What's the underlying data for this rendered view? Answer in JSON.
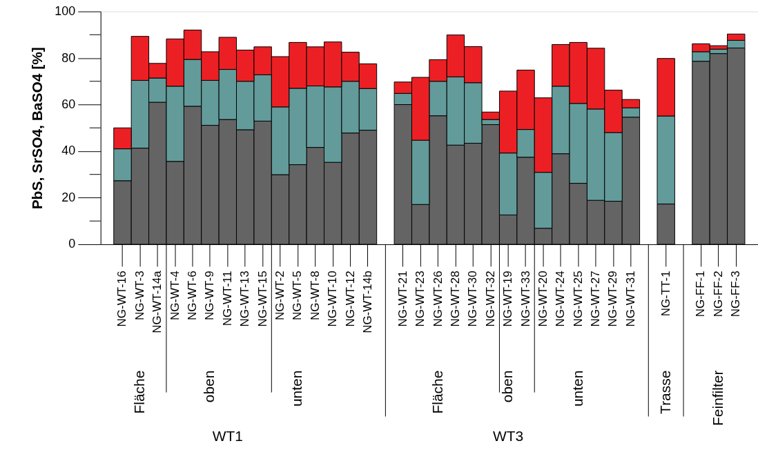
{
  "chart_data": {
    "type": "bar",
    "stacked": true,
    "ylabel": "PbS, SrSO4, BaSO4 [%]",
    "categories": [
      "NG-WT-16",
      "NG-WT-3",
      "NG-WT-14a",
      "NG-WT-4",
      "NG-WT-6",
      "NG-WT-9",
      "NG-WT-11",
      "NG-WT-13",
      "NG-WT-15",
      "NG-WT-2",
      "NG-WT-5",
      "NG-WT-8",
      "NG-WT-10",
      "NG-WT-12",
      "NG-WT-14b",
      null,
      "NG-WT-21",
      "NG-WT-23",
      "NG-WT-26",
      "NG-WT-28",
      "NG-WT-30",
      "NG-WT-32",
      "NG-WT-19",
      "NG-WT-33",
      "NG-WT-20",
      "NG-WT-24",
      "NG-WT-25",
      "NG-WT-27",
      "NG-WT-29",
      "NG-WT-31",
      null,
      "NG-TT-1",
      null,
      "NG-FF-1",
      "NG-FF-2",
      "NG-FF-3"
    ],
    "series": [
      {
        "color": "#646464",
        "values": [
          27.3,
          41.3,
          61.0,
          35.6,
          59.3,
          51.1,
          53.6,
          49.2,
          52.9,
          29.9,
          34.2,
          41.6,
          35.2,
          47.8,
          49.0,
          null,
          60.0,
          17.1,
          55.2,
          42.6,
          43.4,
          51.4,
          12.6,
          37.4,
          6.9,
          38.9,
          26.2,
          18.9,
          18.5,
          54.6,
          null,
          17.3,
          null,
          78.6,
          81.9,
          84.3
        ]
      },
      {
        "color": "#629b9a",
        "values": [
          13.7,
          29.1,
          10.4,
          32.3,
          20.1,
          19.3,
          21.5,
          20.8,
          19.9,
          29.1,
          32.8,
          26.4,
          32.4,
          22.2,
          17.9,
          null,
          4.8,
          27.6,
          14.8,
          29.3,
          26.0,
          2.2,
          26.6,
          11.9,
          24.0,
          29.0,
          34.3,
          39.2,
          29.5,
          4.0,
          null,
          37.8,
          null,
          4.1,
          1.9,
          3.3
        ]
      },
      {
        "color": "#ec2024",
        "values": [
          9.0,
          18.9,
          6.3,
          20.3,
          12.6,
          12.3,
          13.8,
          13.4,
          12.0,
          21.6,
          19.7,
          16.8,
          19.3,
          12.5,
          10.6,
          null,
          4.9,
          27.0,
          9.3,
          18.0,
          15.5,
          3.2,
          26.6,
          25.5,
          32.0,
          17.9,
          26.2,
          26.1,
          18.2,
          3.6,
          null,
          24.7,
          null,
          3.4,
          1.5,
          2.7
        ]
      }
    ],
    "ylim": [
      0,
      100
    ],
    "yticks": [
      0,
      {
        "value": 10,
        "label": null
      },
      20,
      {
        "value": 30,
        "label": null
      },
      40,
      {
        "value": 50,
        "label": null
      },
      60,
      {
        "value": 70,
        "label": null
      },
      80,
      {
        "value": 90,
        "label": null
      },
      100
    ],
    "annotations": [
      "Fläche",
      "oben",
      "unten",
      "Fläche",
      "oben",
      "unten",
      "Trasse",
      "Feinfilter",
      "WT1",
      "WT3"
    ]
  }
}
